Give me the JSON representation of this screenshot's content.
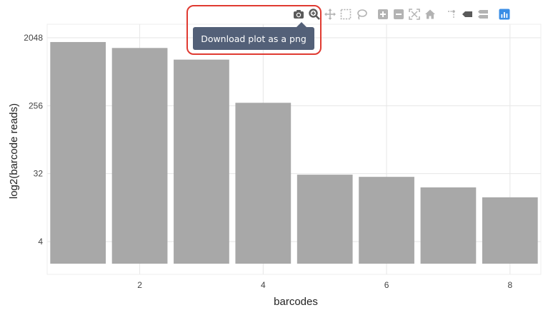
{
  "tooltip": {
    "text": "Download plot as a png"
  },
  "modebar": {
    "buttons": [
      {
        "name": "camera-icon",
        "title": "Download plot as a png",
        "color": "#5a5a5a"
      },
      {
        "name": "zoom-icon",
        "title": "Zoom",
        "color": "#5a5a5a"
      },
      {
        "name": "pan-icon",
        "title": "Pan",
        "color": "#b3b3b3"
      },
      {
        "name": "box-select-icon",
        "title": "Box Select",
        "color": "#b3b3b3"
      },
      {
        "name": "lasso-select-icon",
        "title": "Lasso Select",
        "color": "#b3b3b3"
      },
      {
        "name": "zoom-in-icon",
        "title": "Zoom in",
        "color": "#b3b3b3"
      },
      {
        "name": "zoom-out-icon",
        "title": "Zoom out",
        "color": "#b3b3b3"
      },
      {
        "name": "autoscale-icon",
        "title": "Autoscale",
        "color": "#b3b3b3"
      },
      {
        "name": "reset-axes-icon",
        "title": "Reset axes",
        "color": "#b3b3b3"
      },
      {
        "name": "spike-lines-icon",
        "title": "Toggle Spike Lines",
        "color": "#b3b3b3"
      },
      {
        "name": "hover-closest-icon",
        "title": "Show closest data on hover",
        "color": "#5a5a5a"
      },
      {
        "name": "hover-compare-icon",
        "title": "Compare data on hover",
        "color": "#b3b3b3"
      },
      {
        "name": "plotly-logo-icon",
        "title": "Produced with Plotly",
        "color": "#3a8ee6"
      }
    ]
  },
  "chart_data": {
    "type": "bar",
    "x": [
      1,
      2,
      3,
      4,
      5,
      6,
      7,
      8
    ],
    "values": [
      1800,
      1500,
      1050,
      280,
      31,
      29,
      21,
      15.5
    ],
    "xlabel": "barcodes",
    "ylabel": "log2(barcode reads)",
    "y_scale": "log2",
    "x_ticks": [
      2,
      4,
      6,
      8
    ],
    "y_ticks": [
      4,
      32,
      256,
      2048
    ],
    "y_tick_labels": [
      "4",
      "32",
      "256",
      "2048"
    ],
    "xlim": [
      0.5,
      8.5
    ],
    "ylim_log2": [
      0.55,
      11.6
    ],
    "bar_color": "#a8a8a8",
    "grid": true
  }
}
